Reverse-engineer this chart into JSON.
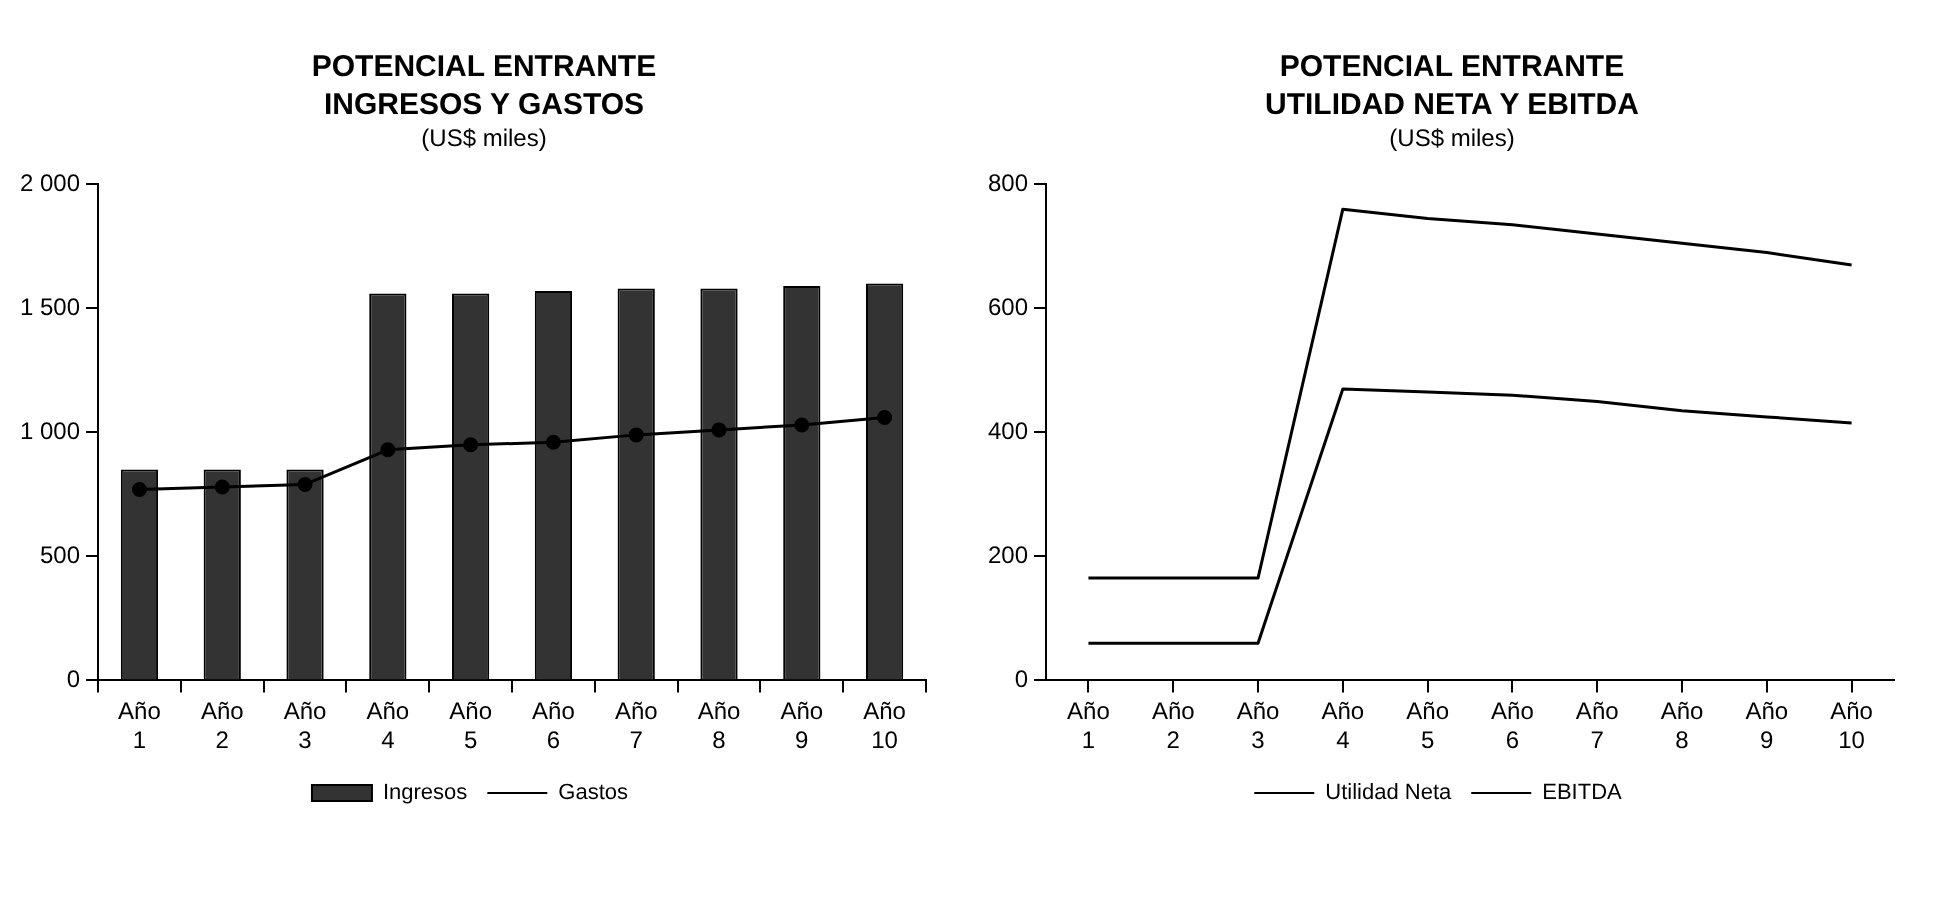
{
  "chart_data": [
    {
      "type": "bar",
      "title": "POTENCIAL ENTRANTE INGRESOS Y GASTOS",
      "subtitle": "(US$ miles)",
      "categories": [
        "Año 1",
        "Año 2",
        "Año 3",
        "Año 4",
        "Año 5",
        "Año 6",
        "Año 7",
        "Año 8",
        "Año 9",
        "Año 10"
      ],
      "series": [
        {
          "name": "Ingresos",
          "color": "#333333",
          "values": [
            850,
            850,
            850,
            1560,
            1560,
            1570,
            1580,
            1580,
            1590,
            1600
          ]
        },
        {
          "name": "Gastos",
          "type": "line",
          "color": "#000000",
          "marker": "circle",
          "values": [
            770,
            780,
            790,
            930,
            950,
            960,
            990,
            1010,
            1030,
            1060
          ]
        }
      ],
      "ylim": [
        0,
        2000
      ],
      "yticks": [
        0,
        500,
        {
          "value": 1000,
          "label": "1 000"
        },
        {
          "value": 1500,
          "label": "1 500"
        },
        {
          "value": 2000,
          "label": "2 000"
        }
      ],
      "legend": "bottom"
    },
    {
      "type": "line",
      "title": "POTENCIAL ENTRANTE UTILIDAD NETA Y EBITDA",
      "subtitle": "(US$ miles)",
      "categories": [
        "Año 1",
        "Año 2",
        "Año 3",
        "Año 4",
        "Año 5",
        "Año 6",
        "Año 7",
        "Año 8",
        "Año 9",
        "Año 10"
      ],
      "series": [
        {
          "name": "Utilidad Neta",
          "color": "#000000",
          "values": [
            60,
            60,
            60,
            470,
            465,
            460,
            450,
            435,
            425,
            415
          ]
        },
        {
          "name": "EBITDA",
          "color": "#000000",
          "values": [
            165,
            165,
            165,
            760,
            745,
            735,
            720,
            705,
            690,
            670
          ]
        }
      ],
      "ylim": [
        0,
        800
      ],
      "yticks": [
        0,
        200,
        400,
        600,
        800
      ],
      "marker": "none",
      "legend": "bottom"
    }
  ]
}
